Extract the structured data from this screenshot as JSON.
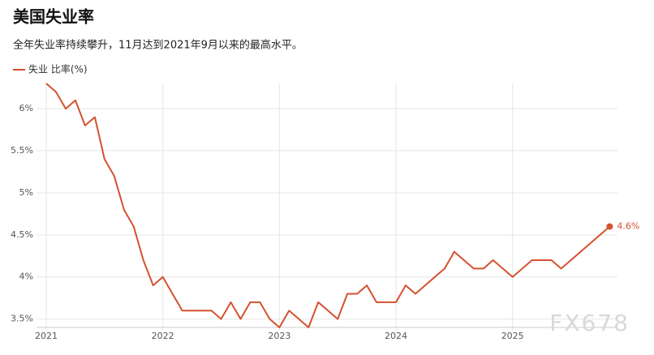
{
  "chart_data": {
    "type": "line",
    "title": "美国失业率",
    "subtitle": "全年失业率持续攀升，11月达到2021年9月以来的最高水平。",
    "watermark": "FX678",
    "xlim": [
      2021,
      2025.9
    ],
    "xticks": [
      2021,
      2022,
      2023,
      2024,
      2025
    ],
    "ylim": [
      3.4,
      6.3
    ],
    "yticks": [
      {
        "value": 3.5,
        "label": "3.5%"
      },
      {
        "value": 4,
        "label": "4%"
      },
      {
        "value": 4.5,
        "label": "4.5%"
      },
      {
        "value": 5,
        "label": "5%"
      },
      {
        "value": 5.5,
        "label": "5.5%"
      },
      {
        "value": 6,
        "label": "6%"
      }
    ],
    "grid": true,
    "series": [
      {
        "name": "失业 比率(%)",
        "color": "#d5512f",
        "x": [
          2021,
          2021.083,
          2021.167,
          2021.25,
          2021.333,
          2021.417,
          2021.5,
          2021.583,
          2021.667,
          2021.75,
          2021.833,
          2021.917,
          2022,
          2022.083,
          2022.167,
          2022.25,
          2022.333,
          2022.417,
          2022.5,
          2022.583,
          2022.667,
          2022.75,
          2022.833,
          2022.917,
          2023,
          2023.083,
          2023.167,
          2023.25,
          2023.333,
          2023.417,
          2023.5,
          2023.583,
          2023.667,
          2023.75,
          2023.833,
          2023.917,
          2024,
          2024.083,
          2024.167,
          2024.25,
          2024.333,
          2024.417,
          2024.5,
          2024.583,
          2024.667,
          2024.75,
          2024.833,
          2024.917,
          2025,
          2025.083,
          2025.167,
          2025.25,
          2025.333,
          2025.417,
          2025.833
        ],
        "values": [
          6.3,
          6.2,
          6.0,
          6.1,
          5.8,
          5.9,
          5.4,
          5.2,
          4.8,
          4.6,
          4.2,
          3.9,
          4.0,
          3.8,
          3.6,
          3.6,
          3.6,
          3.6,
          3.5,
          3.7,
          3.5,
          3.7,
          3.7,
          3.5,
          3.4,
          3.6,
          3.5,
          3.4,
          3.7,
          3.6,
          3.5,
          3.8,
          3.8,
          3.9,
          3.7,
          3.7,
          3.7,
          3.9,
          3.8,
          3.9,
          4.0,
          4.1,
          4.3,
          4.2,
          4.1,
          4.1,
          4.2,
          4.1,
          4.0,
          4.1,
          4.2,
          4.2,
          4.2,
          4.1,
          4.6
        ],
        "value_labels": {
          "54": "4.6%"
        }
      }
    ]
  }
}
